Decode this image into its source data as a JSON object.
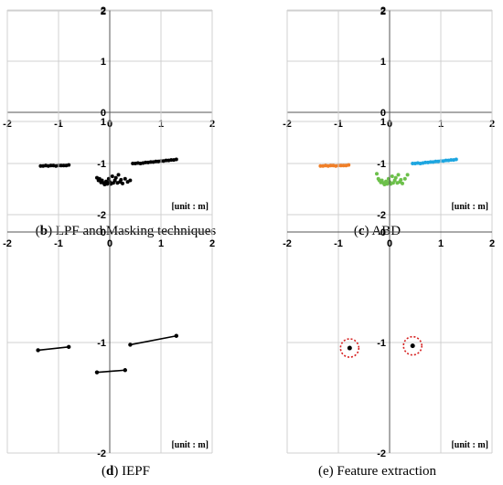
{
  "figure": {
    "panels": [
      {
        "id": "b",
        "caption_letter": "b",
        "caption_text": " LPF and Masking techniques",
        "unit_label": "[unit : m]"
      },
      {
        "id": "c",
        "caption_letter": "c",
        "caption_text": " ABD",
        "unit_label": "[unit : m]"
      },
      {
        "id": "d",
        "caption_letter": "d",
        "caption_text": " IEPF",
        "unit_label": "[unit : m]"
      },
      {
        "id": "e",
        "caption_letter": "e",
        "caption_text": " Feature extraction",
        "unit_label": "[unit : m]"
      }
    ]
  },
  "chart_data": [
    {
      "panel": "b",
      "type": "scatter",
      "xlim": [
        -2,
        2
      ],
      "ylim": [
        -2,
        2
      ],
      "xticks": [
        "-2",
        "-1",
        "0",
        "1",
        "2"
      ],
      "yticks": [
        "2",
        "1",
        "0",
        "-1",
        "-2"
      ],
      "grid": true,
      "series": [
        {
          "color": "#000000",
          "x": [
            -1.35,
            -1.3,
            -1.25,
            -1.2,
            -1.15,
            -1.1,
            -1.05,
            -1.0,
            -0.95,
            -0.9,
            -0.85,
            -0.8,
            -0.25,
            -0.22,
            -0.2,
            -0.17,
            -0.15,
            -0.12,
            -0.1,
            -0.07,
            -0.05,
            -0.02,
            0.0,
            0.02,
            0.05,
            0.07,
            0.1,
            0.12,
            0.15,
            0.17,
            0.2,
            0.22,
            0.25,
            0.3,
            0.35,
            0.4,
            0.45,
            0.5,
            0.55,
            0.6,
            0.65,
            0.7,
            0.75,
            0.8,
            0.85,
            0.9,
            0.95,
            1.0,
            1.05,
            1.1,
            1.15,
            1.2,
            1.25,
            1.3
          ],
          "y": [
            -1.05,
            -1.05,
            -1.04,
            -1.05,
            -1.04,
            -1.04,
            -1.05,
            -1.04,
            -1.04,
            -1.04,
            -1.04,
            -1.03,
            -1.28,
            -1.33,
            -1.3,
            -1.37,
            -1.33,
            -1.38,
            -1.41,
            -1.35,
            -1.4,
            -1.3,
            -1.36,
            -1.4,
            -1.25,
            -1.38,
            -1.33,
            -1.28,
            -1.38,
            -1.22,
            -1.36,
            -1.32,
            -1.39,
            -1.3,
            -1.36,
            -1.33,
            -1.0,
            -1.0,
            -0.99,
            -1.0,
            -0.99,
            -0.98,
            -0.98,
            -0.97,
            -0.97,
            -0.96,
            -0.96,
            -0.95,
            -0.95,
            -0.94,
            -0.94,
            -0.93,
            -0.93,
            -0.92
          ]
        }
      ]
    },
    {
      "panel": "c",
      "type": "scatter",
      "xlim": [
        -2,
        2
      ],
      "ylim": [
        -2,
        2
      ],
      "xticks": [
        "-2",
        "-1",
        "0",
        "1",
        "2"
      ],
      "yticks": [
        "2",
        "1",
        "0",
        "-1",
        "-2"
      ],
      "grid": true,
      "series": [
        {
          "color": "#f07f28",
          "x": [
            -1.35,
            -1.3,
            -1.25,
            -1.2,
            -1.15,
            -1.1,
            -1.05,
            -1.0,
            -0.95,
            -0.9,
            -0.85,
            -0.8
          ],
          "y": [
            -1.05,
            -1.05,
            -1.04,
            -1.05,
            -1.04,
            -1.04,
            -1.05,
            -1.04,
            -1.04,
            -1.04,
            -1.04,
            -1.03
          ]
        },
        {
          "color": "#6cc04a",
          "x": [
            -0.25,
            -0.22,
            -0.2,
            -0.17,
            -0.15,
            -0.12,
            -0.1,
            -0.07,
            -0.05,
            -0.02,
            0.0,
            0.02,
            0.05,
            0.07,
            0.1,
            0.12,
            0.15,
            0.17,
            0.2,
            0.22,
            0.25,
            0.3,
            0.35
          ],
          "y": [
            -1.2,
            -1.3,
            -1.33,
            -1.37,
            -1.33,
            -1.38,
            -1.41,
            -1.35,
            -1.4,
            -1.3,
            -1.36,
            -1.4,
            -1.25,
            -1.38,
            -1.33,
            -1.28,
            -1.38,
            -1.22,
            -1.36,
            -1.32,
            -1.39,
            -1.3,
            -1.22
          ]
        },
        {
          "color": "#1ea6e0",
          "x": [
            0.45,
            0.5,
            0.55,
            0.6,
            0.65,
            0.7,
            0.75,
            0.8,
            0.85,
            0.9,
            0.95,
            1.0,
            1.05,
            1.1,
            1.15,
            1.2,
            1.25,
            1.3
          ],
          "y": [
            -1.0,
            -1.0,
            -0.99,
            -1.0,
            -0.99,
            -0.98,
            -0.98,
            -0.97,
            -0.97,
            -0.96,
            -0.96,
            -0.95,
            -0.95,
            -0.94,
            -0.94,
            -0.93,
            -0.93,
            -0.92
          ]
        }
      ]
    },
    {
      "panel": "d",
      "type": "line",
      "xlim": [
        -2,
        2
      ],
      "ylim": [
        -2,
        2
      ],
      "xticks": [
        "-2",
        "-1",
        "0",
        "1",
        "2"
      ],
      "yticks": [
        "2",
        "1",
        "0",
        "-1",
        "-2"
      ],
      "grid": true,
      "segments": [
        {
          "x": [
            -1.4,
            -0.8
          ],
          "y": [
            -1.07,
            -1.04
          ]
        },
        {
          "x": [
            -0.25,
            0.3
          ],
          "y": [
            -1.27,
            -1.25
          ]
        },
        {
          "x": [
            0.4,
            1.3
          ],
          "y": [
            -1.02,
            -0.94
          ]
        }
      ]
    },
    {
      "panel": "e",
      "type": "scatter",
      "xlim": [
        -2,
        2
      ],
      "ylim": [
        -2,
        2
      ],
      "xticks": [
        "-2",
        "-1",
        "0",
        "1",
        "2"
      ],
      "yticks": [
        "2",
        "1",
        "0",
        "-1",
        "-2"
      ],
      "grid": true,
      "features": [
        {
          "x": -0.78,
          "y": -1.05,
          "marker_color": "#000000",
          "ring_color": "#d62020"
        },
        {
          "x": 0.45,
          "y": -1.03,
          "marker_color": "#000000",
          "ring_color": "#d62020"
        }
      ]
    }
  ]
}
